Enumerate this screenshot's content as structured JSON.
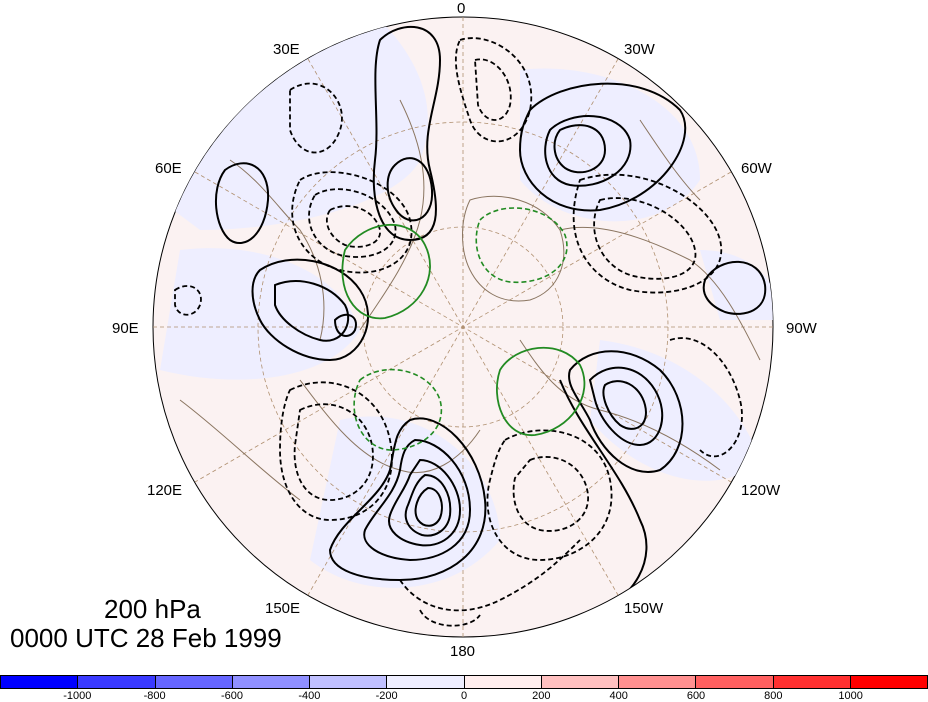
{
  "map": {
    "projection": "polar stereographic",
    "center": "north pole",
    "longitude_labels": {
      "top": "0",
      "top_right1": "30W",
      "top_right2": "60W",
      "right": "90W",
      "bottom_right1": "120W",
      "bottom_right2": "150W",
      "bottom": "180",
      "bottom_left1": "150E",
      "bottom_left2": "120E",
      "left": "90E",
      "top_left2": "60E",
      "top_left1": "30E"
    }
  },
  "annotations": {
    "level": "200 hPa",
    "time": "0000 UTC 28 Feb 1999"
  },
  "colorbar": {
    "tick_labels": [
      "-1000",
      "-800",
      "-600",
      "-400",
      "-200",
      "0",
      "200",
      "400",
      "600",
      "800",
      "1000"
    ],
    "colors": [
      "#0000ff",
      "#3a3aff",
      "#6666ff",
      "#9090ff",
      "#c0c0ff",
      "#eeeeff",
      "#ffeeee",
      "#ffc0c0",
      "#ff9090",
      "#ff6060",
      "#ff3030",
      "#ff0000"
    ]
  },
  "colors": {
    "map_background": "#f8f1f8",
    "coastline": "#8a7560",
    "contour_positive": "#000000",
    "contour_negative": "#000000",
    "contour_special": "#228b22"
  }
}
